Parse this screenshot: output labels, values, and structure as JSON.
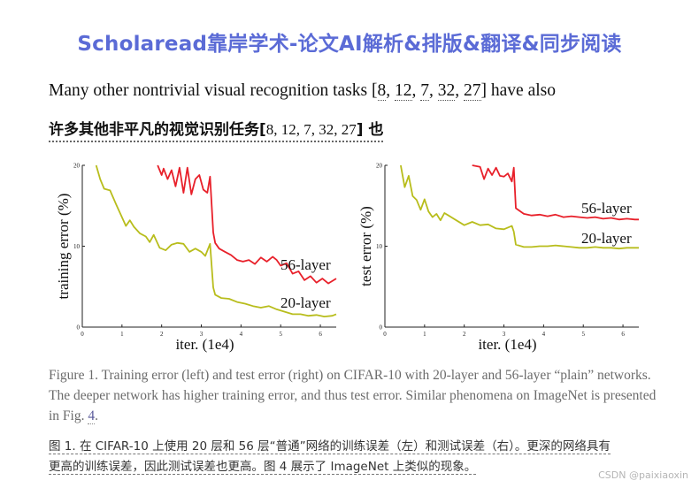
{
  "banner": {
    "title": "Scholaread靠岸学术-论文AI解析&排版&翻译&同步阅读"
  },
  "paragraph": {
    "en_before": "Many other nontrivial visual recognition tasks [",
    "en_after": "] have also",
    "zh_before": "许多其他非平凡的视觉识别任务[",
    "zh_after": "] 也",
    "refs": [
      "8",
      "12",
      "7",
      "32",
      "27"
    ],
    "sep": ", "
  },
  "chart_data": [
    {
      "type": "line",
      "xlabel": "iter. (1e4)",
      "ylabel": "training error (%)",
      "xlim": [
        0,
        6.4
      ],
      "ylim": [
        0,
        20
      ],
      "xticks": [
        "0",
        "1",
        "2",
        "3",
        "4",
        "5",
        "6"
      ],
      "yticks": [
        "0",
        "10",
        "20"
      ],
      "series": [
        {
          "name": "56-layer",
          "color": "#e8202a",
          "x": [
            1.9,
            2.0,
            2.05,
            2.15,
            2.25,
            2.35,
            2.45,
            2.55,
            2.65,
            2.75,
            2.85,
            2.95,
            3.05,
            3.15,
            3.22,
            3.3,
            3.35,
            3.45,
            3.6,
            3.75,
            3.9,
            4.05,
            4.2,
            4.35,
            4.5,
            4.65,
            4.8,
            4.9,
            5.0,
            5.15,
            5.3,
            5.45,
            5.6,
            5.75,
            5.9,
            6.05,
            6.2,
            6.4
          ],
          "y": [
            20,
            18.8,
            19.6,
            18.3,
            19.4,
            17.4,
            19.7,
            16.6,
            19.7,
            16.4,
            18.3,
            18.8,
            17.0,
            16.6,
            18.6,
            11.7,
            10.4,
            9.7,
            9.3,
            8.9,
            8.3,
            8.1,
            8.3,
            7.8,
            8.6,
            8.1,
            8.7,
            8.3,
            7.6,
            7.9,
            6.6,
            6.9,
            5.8,
            6.3,
            5.5,
            6.0,
            5.4,
            6.0
          ]
        },
        {
          "name": "20-layer",
          "color": "#b8bd1c",
          "x": [
            0.35,
            0.45,
            0.55,
            0.7,
            0.85,
            1.0,
            1.1,
            1.2,
            1.3,
            1.45,
            1.6,
            1.7,
            1.8,
            1.95,
            2.1,
            2.25,
            2.4,
            2.55,
            2.7,
            2.85,
            3.0,
            3.1,
            3.22,
            3.3,
            3.35,
            3.5,
            3.7,
            3.9,
            4.1,
            4.3,
            4.5,
            4.7,
            4.9,
            5.1,
            5.3,
            5.5,
            5.7,
            5.9,
            6.1,
            6.3,
            6.4
          ],
          "y": [
            20,
            18.3,
            17.1,
            16.9,
            15.2,
            13.6,
            12.5,
            13.2,
            12.4,
            11.6,
            11.2,
            10.5,
            11.4,
            9.8,
            9.5,
            10.2,
            10.4,
            10.3,
            9.3,
            9.7,
            9.3,
            8.8,
            10.3,
            4.9,
            4.0,
            3.6,
            3.5,
            3.1,
            2.9,
            2.6,
            2.4,
            2.6,
            2.2,
            1.9,
            1.6,
            1.6,
            1.4,
            1.5,
            1.3,
            1.4,
            1.6
          ]
        }
      ]
    },
    {
      "type": "line",
      "xlabel": "iter. (1e4)",
      "ylabel": "test error (%)",
      "xlim": [
        0,
        6.4
      ],
      "ylim": [
        0,
        20
      ],
      "xticks": [
        "0",
        "1",
        "2",
        "3",
        "4",
        "5",
        "6"
      ],
      "yticks": [
        "0",
        "10",
        "20"
      ],
      "series": [
        {
          "name": "56-layer",
          "color": "#e8202a",
          "x": [
            2.2,
            2.3,
            2.4,
            2.5,
            2.6,
            2.7,
            2.8,
            2.9,
            3.0,
            3.1,
            3.2,
            3.25,
            3.3,
            3.5,
            3.7,
            3.9,
            4.1,
            4.3,
            4.5,
            4.7,
            4.9,
            5.1,
            5.3,
            5.5,
            5.7,
            5.9,
            6.1,
            6.3,
            6.4
          ],
          "y": [
            20.0,
            19.9,
            19.8,
            18.3,
            19.6,
            18.8,
            19.7,
            18.7,
            18.6,
            19.0,
            18.0,
            19.7,
            14.7,
            14.0,
            13.8,
            13.9,
            13.7,
            13.9,
            13.6,
            13.7,
            13.6,
            13.5,
            13.6,
            13.4,
            13.5,
            13.3,
            13.4,
            13.3,
            13.3
          ]
        },
        {
          "name": "20-layer",
          "color": "#b8bd1c",
          "x": [
            0.4,
            0.5,
            0.6,
            0.7,
            0.8,
            0.9,
            1.0,
            1.1,
            1.2,
            1.3,
            1.4,
            1.5,
            1.6,
            1.8,
            2.0,
            2.2,
            2.4,
            2.6,
            2.8,
            3.0,
            3.2,
            3.25,
            3.3,
            3.5,
            3.7,
            3.9,
            4.1,
            4.3,
            4.5,
            4.7,
            4.9,
            5.1,
            5.3,
            5.5,
            5.7,
            5.9,
            6.1,
            6.3,
            6.4
          ],
          "y": [
            20.0,
            17.3,
            18.7,
            16.2,
            15.7,
            14.5,
            15.8,
            14.3,
            13.6,
            14.0,
            13.2,
            14.1,
            13.8,
            13.2,
            12.6,
            13.0,
            12.6,
            12.7,
            12.2,
            12.1,
            12.5,
            11.8,
            10.2,
            9.9,
            9.9,
            10.0,
            10.0,
            10.1,
            10.0,
            9.9,
            9.8,
            9.8,
            9.9,
            9.8,
            9.8,
            9.7,
            9.8,
            9.8,
            9.8
          ]
        }
      ]
    }
  ],
  "caption": {
    "en_main": "Figure 1. Training error (left) and test error (right) on CIFAR-10 with 20-layer and 56-layer “plain” networks. The deeper network has higher training error, and thus test error. Similar phenomena on ImageNet is presented in Fig. ",
    "en_ref": "4",
    "en_end": ".",
    "zh_line1": "图 1. 在 CIFAR-10 上使用 20 层和 56 层“普通”网络的训练误差（左）和测试误差（右）。更深的网络具有",
    "zh_line2": "更高的训练误差，因此测试误差也更高。图 4 展示了 ImageNet 上类似的现象。"
  },
  "watermark": "CSDN @paixiaoxin"
}
